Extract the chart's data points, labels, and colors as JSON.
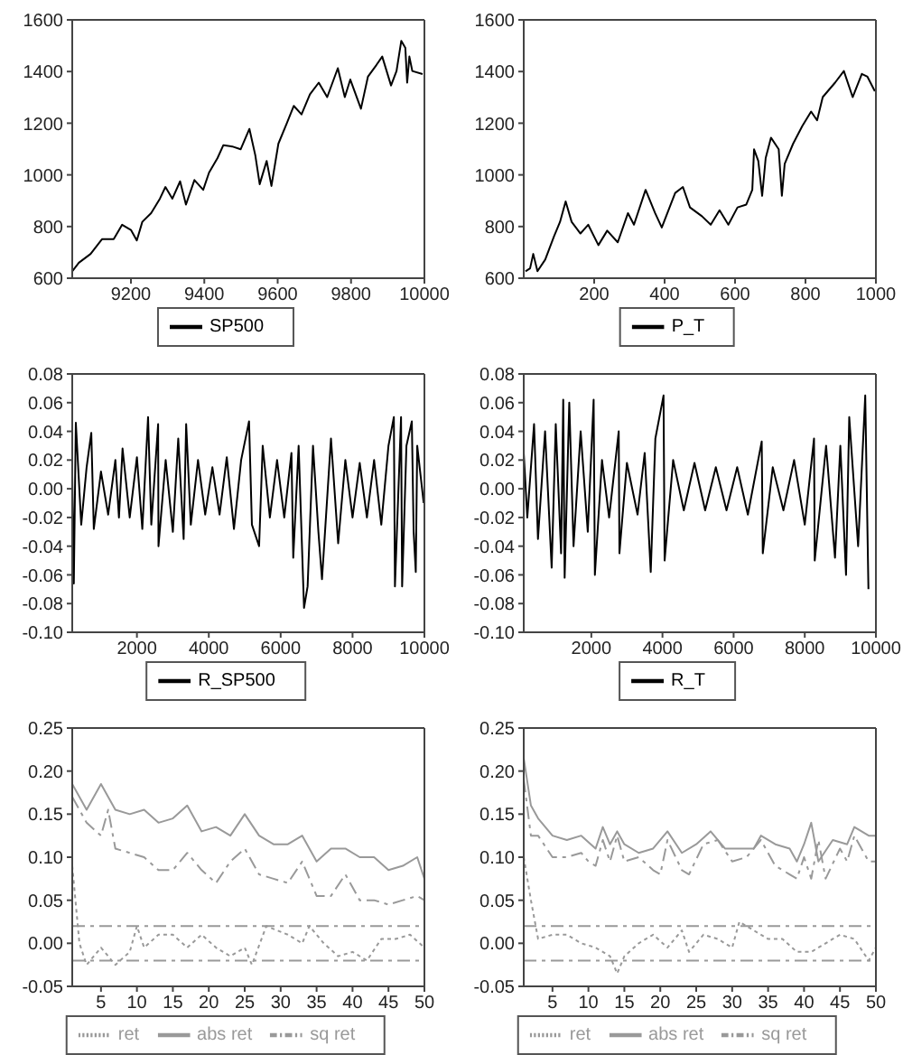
{
  "chart_data": [
    {
      "type": "line",
      "legend": "bottom",
      "xlim": [
        9040,
        10000
      ],
      "xticks": [
        9200,
        9400,
        9600,
        9800,
        10000
      ],
      "ylim": [
        600,
        1600
      ],
      "yticks": [
        600,
        800,
        1000,
        1200,
        1400,
        1600
      ],
      "series": [
        {
          "name": "SP500",
          "color": "#000000",
          "x": [
            9040,
            9058,
            9090,
            9121,
            9153,
            9176,
            9200,
            9216,
            9231,
            9255,
            9279,
            9294,
            9313,
            9334,
            9350,
            9373,
            9397,
            9413,
            9436,
            9452,
            9476,
            9499,
            9523,
            9539,
            9551,
            9570,
            9583,
            9602,
            9625,
            9644,
            9665,
            9688,
            9712,
            9735,
            9764,
            9783,
            9798,
            9827,
            9846,
            9869,
            9885,
            9909,
            9924,
            9937,
            9948,
            9953,
            9959,
            9967,
            9995
          ],
          "values": [
            627,
            660,
            694,
            751,
            751,
            807,
            787,
            746,
            818,
            852,
            908,
            953,
            908,
            975,
            885,
            980,
            942,
            1009,
            1065,
            1115,
            1110,
            1099,
            1178,
            1076,
            964,
            1054,
            957,
            1121,
            1200,
            1267,
            1234,
            1312,
            1357,
            1301,
            1413,
            1301,
            1369,
            1256,
            1380,
            1425,
            1458,
            1346,
            1402,
            1519,
            1492,
            1357,
            1458,
            1402,
            1390
          ]
        }
      ]
    },
    {
      "type": "line",
      "legend": "bottom",
      "xlim": [
        0,
        1000
      ],
      "xticks": [
        200,
        400,
        600,
        800,
        1000
      ],
      "ylim": [
        600,
        1600
      ],
      "yticks": [
        600,
        800,
        1000,
        1200,
        1400,
        1600
      ],
      "series": [
        {
          "name": "P_T",
          "color": "#000000",
          "x": [
            5,
            18,
            27,
            39,
            61,
            86,
            103,
            119,
            136,
            161,
            183,
            212,
            237,
            267,
            296,
            313,
            346,
            373,
            392,
            430,
            452,
            472,
            506,
            531,
            556,
            581,
            607,
            632,
            649,
            654,
            666,
            677,
            687,
            702,
            724,
            733,
            741,
            765,
            791,
            816,
            833,
            849,
            884,
            909,
            934,
            960,
            976,
            997
          ],
          "values": [
            627,
            638,
            694,
            627,
            672,
            762,
            818,
            897,
            818,
            773,
            807,
            728,
            784,
            739,
            852,
            807,
            942,
            852,
            796,
            930,
            953,
            874,
            840,
            807,
            863,
            807,
            874,
            885,
            942,
            1099,
            1054,
            919,
            1065,
            1144,
            1099,
            919,
            1043,
            1121,
            1189,
            1245,
            1211,
            1301,
            1357,
            1402,
            1301,
            1391,
            1380,
            1324
          ]
        }
      ]
    },
    {
      "type": "line",
      "legend": "bottom",
      "xlim": [
        200,
        10000
      ],
      "xticks": [
        2000,
        4000,
        6000,
        8000,
        10000
      ],
      "ylim": [
        -0.1,
        0.08
      ],
      "yticks": [
        {
          "value": -0.1,
          "label": "-0.10"
        },
        {
          "value": -0.08,
          "label": "-0.08"
        },
        {
          "value": -0.06,
          "label": "-0.06"
        },
        {
          "value": -0.04,
          "label": "-0.04"
        },
        {
          "value": -0.02,
          "label": "-0.02"
        },
        {
          "value": 0,
          "label": "0.00"
        },
        {
          "value": 0.02,
          "label": "0.02"
        },
        {
          "value": 0.04,
          "label": "0.04"
        },
        {
          "value": 0.06,
          "label": "0.06"
        },
        {
          "value": 0.08,
          "label": "0.08"
        }
      ],
      "series": [
        {
          "name": "R_SP500",
          "color": "#000000",
          "x": [
            200,
            244,
            300,
            450,
            600,
            730,
            800,
            1000,
            1200,
            1400,
            1500,
            1600,
            1800,
            2000,
            2150,
            2310,
            2400,
            2590,
            2600,
            2800,
            3000,
            3150,
            3300,
            3370,
            3500,
            3700,
            3900,
            4100,
            4300,
            4500,
            4700,
            4900,
            5120,
            5200,
            5400,
            5500,
            5700,
            5900,
            6100,
            6300,
            6350,
            6500,
            6650,
            6750,
            6900,
            7050,
            7150,
            7400,
            7600,
            7800,
            8000,
            8200,
            8400,
            8600,
            8800,
            9000,
            9150,
            9180,
            9350,
            9380,
            9500,
            9650,
            9700,
            9760,
            9800,
            9980
          ],
          "values": [
            0.01,
            -0.066,
            0.046,
            -0.025,
            0.015,
            0.039,
            -0.028,
            0.012,
            -0.018,
            0.02,
            -0.02,
            0.028,
            -0.02,
            0.022,
            -0.028,
            0.05,
            -0.025,
            0.045,
            -0.04,
            0.02,
            -0.03,
            0.035,
            -0.035,
            0.045,
            -0.025,
            0.02,
            -0.018,
            0.015,
            -0.018,
            0.022,
            -0.028,
            0.02,
            0.047,
            -0.025,
            -0.04,
            0.03,
            -0.02,
            0.02,
            -0.02,
            0.025,
            -0.048,
            0.03,
            -0.083,
            -0.068,
            0.03,
            -0.03,
            -0.063,
            0.035,
            -0.038,
            0.02,
            -0.02,
            0.018,
            -0.02,
            0.02,
            -0.025,
            0.03,
            0.05,
            -0.068,
            0.05,
            -0.068,
            0.03,
            0.047,
            -0.03,
            -0.058,
            0.03,
            -0.01
          ]
        }
      ]
    },
    {
      "type": "line",
      "legend": "bottom",
      "xlim": [
        100,
        10000
      ],
      "xticks": [
        2000,
        4000,
        6000,
        8000,
        10000
      ],
      "ylim": [
        -0.1,
        0.08
      ],
      "yticks": [
        {
          "value": -0.1,
          "label": "-0.10"
        },
        {
          "value": -0.08,
          "label": "-0.08"
        },
        {
          "value": -0.06,
          "label": "-0.06"
        },
        {
          "value": -0.04,
          "label": "-0.04"
        },
        {
          "value": -0.02,
          "label": "-0.02"
        },
        {
          "value": 0,
          "label": "0.00"
        },
        {
          "value": 0.02,
          "label": "0.02"
        },
        {
          "value": 0.04,
          "label": "0.04"
        },
        {
          "value": 0.06,
          "label": "0.06"
        },
        {
          "value": 0.08,
          "label": "0.08"
        }
      ],
      "series": [
        {
          "name": "R_T",
          "color": "#000000",
          "x": [
            100,
            200,
            390,
            500,
            700,
            885,
            1000,
            1150,
            1210,
            1250,
            1380,
            1500,
            1700,
            1900,
            2065,
            2100,
            2300,
            2500,
            2770,
            2790,
            3000,
            3300,
            3500,
            3670,
            3800,
            4030,
            4060,
            4300,
            4600,
            4900,
            5200,
            5500,
            5800,
            6100,
            6400,
            6790,
            6820,
            7100,
            7400,
            7700,
            8000,
            8260,
            8280,
            8600,
            8850,
            9000,
            9160,
            9250,
            9500,
            9700,
            9790
          ],
          "values": [
            0.025,
            -0.02,
            0.045,
            -0.035,
            0.04,
            -0.055,
            0.045,
            -0.045,
            0.062,
            -0.062,
            0.06,
            -0.04,
            0.04,
            -0.03,
            0.062,
            -0.06,
            0.02,
            -0.02,
            0.04,
            -0.045,
            0.018,
            -0.018,
            0.025,
            -0.058,
            0.035,
            0.065,
            -0.05,
            0.02,
            -0.015,
            0.018,
            -0.015,
            0.015,
            -0.015,
            0.015,
            -0.018,
            0.033,
            -0.045,
            0.015,
            -0.015,
            0.02,
            -0.025,
            0.035,
            -0.05,
            0.03,
            -0.048,
            0.03,
            -0.06,
            0.05,
            -0.04,
            0.065,
            -0.07
          ]
        }
      ]
    },
    {
      "type": "line",
      "legend": "bottom",
      "xlim": [
        1,
        50
      ],
      "xticks": [
        5,
        10,
        15,
        20,
        25,
        30,
        35,
        40,
        45,
        50
      ],
      "ylim": [
        -0.05,
        0.25
      ],
      "yticks": [
        {
          "value": -0.05,
          "label": "-0.05"
        },
        {
          "value": 0,
          "label": "0.00"
        },
        {
          "value": 0.05,
          "label": "0.05"
        },
        {
          "value": 0.1,
          "label": "0.10"
        },
        {
          "value": 0.15,
          "label": "0.15"
        },
        {
          "value": 0.2,
          "label": "0.20"
        },
        {
          "value": 0.25,
          "label": "0.25"
        }
      ],
      "ref_lines": [
        {
          "axis": "y",
          "value": 0.02,
          "color": "#999999",
          "line_style": "dashed"
        },
        {
          "axis": "y",
          "value": -0.02,
          "color": "#999999",
          "line_style": "dashed"
        }
      ],
      "series": [
        {
          "name": "ret",
          "color": "#999999",
          "line_style": "dotted",
          "x": [
            1,
            2,
            3,
            5,
            7,
            9,
            10,
            11,
            13,
            15,
            17,
            19,
            21,
            23,
            25,
            26,
            28,
            31,
            33,
            34,
            36,
            38,
            40,
            42,
            44,
            46,
            48,
            50
          ],
          "values": [
            0.09,
            0,
            -0.025,
            -0.005,
            -0.025,
            -0.01,
            0.02,
            -0.005,
            0.01,
            0.01,
            -0.005,
            0.01,
            -0.005,
            -0.015,
            -0.005,
            -0.025,
            0.02,
            0.01,
            0,
            0.02,
            0,
            -0.015,
            -0.01,
            -0.02,
            0.005,
            0.005,
            0.01,
            -0.005
          ]
        },
        {
          "name": "abs ret",
          "color": "#999999",
          "line_style": "solid",
          "x": [
            1,
            3,
            5,
            7,
            9,
            11,
            13,
            15,
            17,
            19,
            21,
            23,
            25,
            27,
            29,
            31,
            33,
            35,
            37,
            39,
            41,
            43,
            45,
            47,
            49,
            50
          ],
          "values": [
            0.185,
            0.155,
            0.185,
            0.155,
            0.15,
            0.155,
            0.14,
            0.145,
            0.16,
            0.13,
            0.135,
            0.125,
            0.15,
            0.125,
            0.115,
            0.115,
            0.125,
            0.095,
            0.11,
            0.11,
            0.1,
            0.1,
            0.085,
            0.09,
            0.1,
            0.075
          ]
        },
        {
          "name": "sq ret",
          "color": "#999999",
          "line_style": "dashed",
          "x": [
            1,
            3,
            5,
            6,
            7,
            9,
            11,
            13,
            15,
            17,
            19,
            21,
            23,
            25,
            27,
            29,
            31,
            33,
            35,
            37,
            39,
            41,
            43,
            45,
            47,
            49,
            50
          ],
          "values": [
            0.17,
            0.14,
            0.125,
            0.155,
            0.11,
            0.105,
            0.1,
            0.085,
            0.085,
            0.105,
            0.085,
            0.07,
            0.095,
            0.11,
            0.08,
            0.075,
            0.07,
            0.095,
            0.055,
            0.055,
            0.08,
            0.05,
            0.05,
            0.045,
            0.05,
            0.055,
            0.05
          ]
        }
      ]
    },
    {
      "type": "line",
      "legend": "bottom",
      "xlim": [
        1,
        50
      ],
      "xticks": [
        5,
        10,
        15,
        20,
        25,
        30,
        35,
        40,
        45,
        50
      ],
      "ylim": [
        -0.05,
        0.25
      ],
      "yticks": [
        {
          "value": -0.05,
          "label": "-0.05"
        },
        {
          "value": 0,
          "label": "0.00"
        },
        {
          "value": 0.05,
          "label": "0.05"
        },
        {
          "value": 0.1,
          "label": "0.10"
        },
        {
          "value": 0.15,
          "label": "0.15"
        },
        {
          "value": 0.2,
          "label": "0.20"
        },
        {
          "value": 0.25,
          "label": "0.25"
        }
      ],
      "ref_lines": [
        {
          "axis": "y",
          "value": 0.02,
          "color": "#999999",
          "line_style": "dashed"
        },
        {
          "axis": "y",
          "value": -0.02,
          "color": "#999999",
          "line_style": "dashed"
        }
      ],
      "series": [
        {
          "name": "ret",
          "color": "#999999",
          "line_style": "dotted",
          "x": [
            1,
            2,
            3,
            5,
            7,
            9,
            11,
            13,
            14,
            15,
            17,
            19,
            21,
            23,
            24,
            26,
            28,
            30,
            31,
            33,
            35,
            37,
            39,
            41,
            43,
            45,
            47,
            49,
            50
          ],
          "values": [
            0.1,
            0.05,
            0.005,
            0.01,
            0.01,
            0,
            -0.005,
            -0.015,
            -0.035,
            -0.015,
            0,
            0.01,
            -0.005,
            0.015,
            -0.01,
            0.01,
            0.005,
            -0.005,
            0.025,
            0.015,
            0.005,
            0.005,
            -0.01,
            -0.01,
            0,
            0.01,
            0.005,
            -0.02,
            -0.005
          ]
        },
        {
          "name": "abs ret",
          "color": "#999999",
          "line_style": "solid",
          "x": [
            1,
            2,
            3,
            5,
            7,
            9,
            11,
            12,
            13,
            14,
            15,
            17,
            19,
            21,
            23,
            25,
            27,
            29,
            31,
            33,
            34,
            36,
            38,
            39,
            40,
            41,
            42,
            44,
            46,
            47,
            49,
            50
          ],
          "values": [
            0.215,
            0.16,
            0.145,
            0.125,
            0.12,
            0.125,
            0.11,
            0.135,
            0.115,
            0.13,
            0.115,
            0.105,
            0.11,
            0.13,
            0.105,
            0.115,
            0.13,
            0.11,
            0.11,
            0.11,
            0.125,
            0.115,
            0.11,
            0.095,
            0.115,
            0.14,
            0.095,
            0.12,
            0.115,
            0.135,
            0.125,
            0.125
          ]
        },
        {
          "name": "sq ret",
          "color": "#999999",
          "line_style": "dashed",
          "x": [
            1,
            2,
            3,
            5,
            7,
            9,
            10,
            11,
            12,
            13,
            14,
            15,
            17,
            19,
            20,
            21,
            23,
            24,
            26,
            28,
            30,
            32,
            34,
            36,
            38,
            39,
            40,
            41,
            42,
            43,
            45,
            46,
            47,
            49,
            50
          ],
          "values": [
            0.19,
            0.125,
            0.125,
            0.1,
            0.1,
            0.105,
            0.095,
            0.09,
            0.12,
            0.095,
            0.125,
            0.095,
            0.1,
            0.085,
            0.08,
            0.12,
            0.085,
            0.08,
            0.115,
            0.12,
            0.095,
            0.1,
            0.12,
            0.09,
            0.08,
            0.075,
            0.1,
            0.075,
            0.12,
            0.075,
            0.11,
            0.095,
            0.125,
            0.095,
            0.095
          ]
        }
      ]
    }
  ]
}
